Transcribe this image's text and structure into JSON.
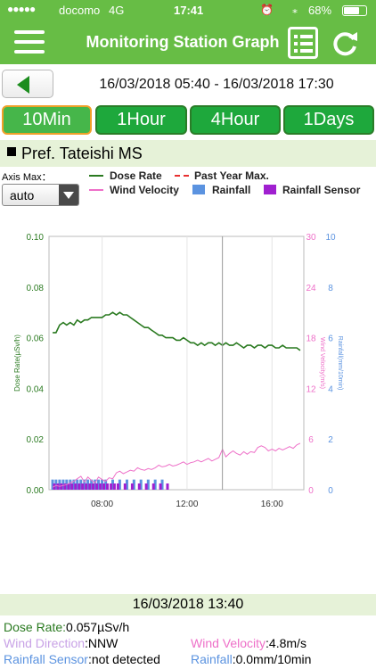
{
  "status_bar": {
    "carrier": "docomo",
    "network": "4G",
    "time": "17:41",
    "battery": "68%"
  },
  "header": {
    "title": "Monitoring Station Graph"
  },
  "date_range": "16/03/2018 05:40 - 16/03/2018 17:30",
  "tabs": [
    {
      "label": "10Min",
      "active": true
    },
    {
      "label": "1Hour",
      "active": false
    },
    {
      "label": "4Hour",
      "active": false
    },
    {
      "label": "1Days",
      "active": false
    }
  ],
  "station": {
    "name": "Pref. Tateishi MS"
  },
  "axis_max": {
    "label": "Axis Max：",
    "value": "auto"
  },
  "legend": {
    "dose_rate": "Dose Rate",
    "past_year_max": "Past Year Max.",
    "wind_velocity": "Wind Velocity",
    "rainfall": "Rainfall",
    "rainfall_sensor": "Rainfall Sensor"
  },
  "colors": {
    "header": "#67bd45",
    "dose": "#2a7a20",
    "wind": "#ee6fc8",
    "rainfall": "#5b93e0",
    "rainfall_sensor": "#a020d0",
    "past_max": "#e83030"
  },
  "chart_data": {
    "type": "line",
    "xlabel": "",
    "ylabel_left": "Dose Rate(µSv/h)",
    "ylabel_right_wind": "Wind Velocity(m/s)",
    "ylabel_right_rain": "Rainfall(mm/10min)",
    "x_ticks": [
      "08:00",
      "12:00",
      "16:00"
    ],
    "x_tick_hours": [
      8,
      12,
      16
    ],
    "x_range_hours": [
      5.5,
      17.5
    ],
    "cursor_time": "13:40",
    "y_left_ticks": [
      "0.00",
      "0.02",
      "0.04",
      "0.06",
      "0.08",
      "0.10"
    ],
    "y_left_range": [
      0,
      0.1
    ],
    "y_wind_ticks": [
      "0",
      "6",
      "12",
      "18",
      "24",
      "30"
    ],
    "y_wind_range": [
      0,
      30
    ],
    "y_rain_ticks": [
      "0",
      "2",
      "4",
      "6",
      "8",
      "10"
    ],
    "y_rain_range": [
      0,
      10
    ],
    "series": [
      {
        "name": "Dose Rate",
        "axis": "left",
        "points": [
          [
            5.67,
            0.062
          ],
          [
            5.83,
            0.062
          ],
          [
            6.0,
            0.065
          ],
          [
            6.17,
            0.066
          ],
          [
            6.33,
            0.065
          ],
          [
            6.5,
            0.066
          ],
          [
            6.67,
            0.065
          ],
          [
            6.83,
            0.067
          ],
          [
            7.0,
            0.066
          ],
          [
            7.17,
            0.067
          ],
          [
            7.33,
            0.067
          ],
          [
            7.5,
            0.068
          ],
          [
            7.67,
            0.068
          ],
          [
            7.83,
            0.068
          ],
          [
            8.0,
            0.068
          ],
          [
            8.17,
            0.069
          ],
          [
            8.33,
            0.069
          ],
          [
            8.5,
            0.07
          ],
          [
            8.67,
            0.069
          ],
          [
            8.83,
            0.07
          ],
          [
            9.0,
            0.069
          ],
          [
            9.17,
            0.069
          ],
          [
            9.33,
            0.068
          ],
          [
            9.5,
            0.067
          ],
          [
            9.67,
            0.066
          ],
          [
            9.83,
            0.065
          ],
          [
            10.0,
            0.064
          ],
          [
            10.17,
            0.064
          ],
          [
            10.33,
            0.063
          ],
          [
            10.5,
            0.062
          ],
          [
            10.67,
            0.061
          ],
          [
            10.83,
            0.061
          ],
          [
            11.0,
            0.06
          ],
          [
            11.17,
            0.06
          ],
          [
            11.33,
            0.06
          ],
          [
            11.5,
            0.059
          ],
          [
            11.67,
            0.059
          ],
          [
            11.83,
            0.06
          ],
          [
            12.0,
            0.059
          ],
          [
            12.17,
            0.058
          ],
          [
            12.33,
            0.058
          ],
          [
            12.5,
            0.057
          ],
          [
            12.67,
            0.058
          ],
          [
            12.83,
            0.057
          ],
          [
            13.0,
            0.058
          ],
          [
            13.17,
            0.058
          ],
          [
            13.33,
            0.057
          ],
          [
            13.5,
            0.058
          ],
          [
            13.67,
            0.057
          ],
          [
            13.83,
            0.058
          ],
          [
            14.0,
            0.057
          ],
          [
            14.17,
            0.057
          ],
          [
            14.33,
            0.058
          ],
          [
            14.5,
            0.057
          ],
          [
            14.67,
            0.056
          ],
          [
            14.83,
            0.057
          ],
          [
            15.0,
            0.057
          ],
          [
            15.17,
            0.056
          ],
          [
            15.33,
            0.057
          ],
          [
            15.5,
            0.057
          ],
          [
            15.67,
            0.056
          ],
          [
            15.83,
            0.057
          ],
          [
            16.0,
            0.057
          ],
          [
            16.17,
            0.056
          ],
          [
            16.33,
            0.056
          ],
          [
            16.5,
            0.057
          ],
          [
            16.67,
            0.056
          ],
          [
            16.83,
            0.056
          ],
          [
            17.0,
            0.056
          ],
          [
            17.17,
            0.056
          ],
          [
            17.33,
            0.055
          ]
        ]
      },
      {
        "name": "Wind Velocity",
        "axis": "wind",
        "points": [
          [
            5.67,
            0.3
          ],
          [
            5.83,
            0.5
          ],
          [
            6.0,
            0.4
          ],
          [
            6.17,
            0.5
          ],
          [
            6.33,
            0.6
          ],
          [
            6.5,
            0.8
          ],
          [
            6.67,
            1.0
          ],
          [
            6.83,
            1.3
          ],
          [
            7.0,
            1.6
          ],
          [
            7.17,
            0.9
          ],
          [
            7.33,
            1.5
          ],
          [
            7.5,
            1.1
          ],
          [
            7.67,
            0.8
          ],
          [
            7.83,
            1.5
          ],
          [
            8.0,
            1.2
          ],
          [
            8.17,
            1.0
          ],
          [
            8.33,
            1.4
          ],
          [
            8.5,
            1.3
          ],
          [
            8.67,
            2.0
          ],
          [
            8.83,
            2.2
          ],
          [
            9.0,
            1.9
          ],
          [
            9.17,
            2.1
          ],
          [
            9.33,
            2.3
          ],
          [
            9.5,
            2.2
          ],
          [
            9.67,
            2.6
          ],
          [
            9.83,
            2.4
          ],
          [
            10.0,
            2.3
          ],
          [
            10.17,
            2.5
          ],
          [
            10.33,
            2.4
          ],
          [
            10.5,
            2.6
          ],
          [
            10.67,
            2.9
          ],
          [
            10.83,
            2.7
          ],
          [
            11.0,
            2.8
          ],
          [
            11.17,
            3.0
          ],
          [
            11.33,
            2.8
          ],
          [
            11.5,
            2.9
          ],
          [
            11.67,
            3.1
          ],
          [
            11.83,
            3.3
          ],
          [
            12.0,
            3.0
          ],
          [
            12.17,
            3.2
          ],
          [
            12.33,
            3.3
          ],
          [
            12.5,
            3.5
          ],
          [
            12.67,
            3.3
          ],
          [
            12.83,
            3.5
          ],
          [
            13.0,
            3.7
          ],
          [
            13.17,
            3.4
          ],
          [
            13.33,
            3.6
          ],
          [
            13.5,
            3.8
          ],
          [
            13.67,
            4.8
          ],
          [
            13.83,
            3.9
          ],
          [
            14.0,
            4.3
          ],
          [
            14.17,
            4.6
          ],
          [
            14.33,
            4.3
          ],
          [
            14.5,
            4.1
          ],
          [
            14.67,
            4.5
          ],
          [
            14.83,
            4.2
          ],
          [
            15.0,
            4.5
          ],
          [
            15.17,
            4.4
          ],
          [
            15.33,
            5.0
          ],
          [
            15.5,
            5.2
          ],
          [
            15.67,
            5.0
          ],
          [
            15.83,
            4.6
          ],
          [
            16.0,
            4.8
          ],
          [
            16.17,
            4.6
          ],
          [
            16.33,
            4.9
          ],
          [
            16.5,
            4.7
          ],
          [
            16.67,
            4.9
          ],
          [
            16.83,
            5.1
          ],
          [
            17.0,
            4.9
          ],
          [
            17.17,
            5.3
          ],
          [
            17.33,
            5.5
          ]
        ]
      }
    ],
    "rainfall_sensor_times": [
      5.75,
      5.92,
      6.08,
      6.25,
      6.42,
      6.58,
      6.75,
      6.92,
      7.08,
      7.25,
      7.42,
      7.58,
      7.75,
      7.92,
      8.08,
      8.25,
      8.42,
      8.58,
      8.75,
      9.08,
      9.42,
      9.75,
      10.08,
      10.42,
      10.75,
      11.08
    ],
    "rainfall_values_mm": [
      0.4,
      0.4,
      0.4,
      0.4,
      0.4,
      0.4,
      0.4,
      0.4,
      0.4,
      0.4,
      0.4,
      0.4,
      0.4,
      0.4,
      0.4,
      0.4,
      0.4,
      0.4,
      0.4,
      0.4,
      0.4,
      0.4,
      0.4,
      0.4
    ],
    "rainfall_times": [
      5.67,
      5.83,
      6.0,
      6.17,
      6.33,
      6.5,
      6.67,
      6.83,
      7.0,
      7.17,
      7.33,
      7.5,
      7.67,
      7.83,
      8.0,
      8.17,
      8.5,
      8.83,
      9.17,
      9.5,
      9.83,
      10.17,
      10.5,
      10.83
    ]
  },
  "info": {
    "timestamp": "16/03/2018 13:40",
    "dose_label": "Dose Rate:",
    "dose_value": "0.057µSv/h",
    "wind_dir_label": "Wind Direction",
    "wind_dir_value": ":NNW",
    "wind_vel_label": "Wind Velocity",
    "wind_vel_value": ":4.8m/s",
    "rain_sensor_label": "Rainfall Sensor",
    "rain_sensor_value": ":not detected",
    "rainfall_label": "Rainfall",
    "rainfall_value": ":0.0mm/10min"
  }
}
